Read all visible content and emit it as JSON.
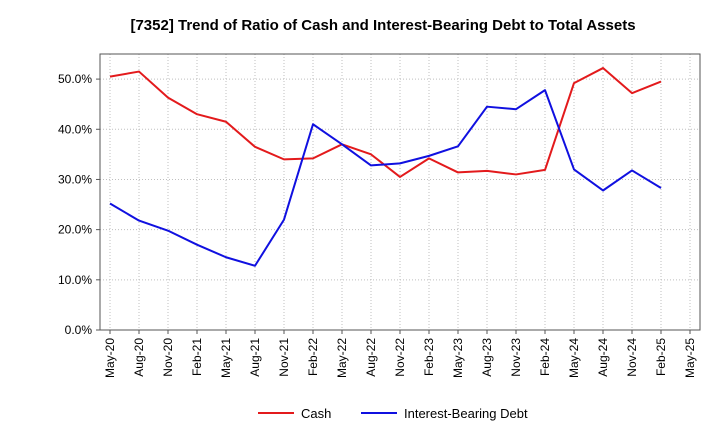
{
  "chart_data": {
    "type": "line",
    "title": "[7352]  Trend of Ratio of Cash and Interest-Bearing Debt to Total Assets",
    "xlabel": "",
    "ylabel": "",
    "x_ticks": [
      "May-20",
      "Aug-20",
      "Nov-20",
      "Feb-21",
      "May-21",
      "Aug-21",
      "Nov-21",
      "Feb-22",
      "May-22",
      "Aug-22",
      "Nov-22",
      "Feb-23",
      "May-23",
      "Aug-23",
      "Nov-23",
      "Feb-24",
      "May-24",
      "Aug-24",
      "Nov-24",
      "Feb-25",
      "May-25"
    ],
    "y_ticks": [
      "0.0%",
      "10.0%",
      "20.0%",
      "30.0%",
      "40.0%",
      "50.0%"
    ],
    "ylim": [
      0,
      55
    ],
    "grid": true,
    "legend_position": "bottom",
    "series": [
      {
        "name": "Cash",
        "color": "#e31a1c",
        "values": [
          50.5,
          51.5,
          46.3,
          43.0,
          41.5,
          36.5,
          34.0,
          34.2,
          37.0,
          35.0,
          30.5,
          34.2,
          31.4,
          31.7,
          31.0,
          31.9,
          49.2,
          52.2,
          47.2,
          49.5
        ]
      },
      {
        "name": "Interest-Bearing Debt",
        "color": "#1010e0",
        "values": [
          25.2,
          21.8,
          19.8,
          17.0,
          14.5,
          12.8,
          22.0,
          41.0,
          37.0,
          32.8,
          33.2,
          34.7,
          36.6,
          44.5,
          44.0,
          47.8,
          32.0,
          27.8,
          31.8,
          28.3
        ]
      }
    ]
  }
}
